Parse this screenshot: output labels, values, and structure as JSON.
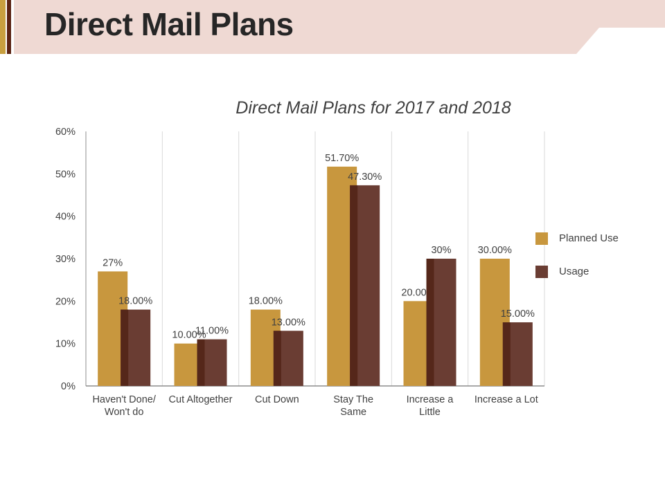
{
  "page": {
    "title": "Direct Mail Plans"
  },
  "colors": {
    "banner": "#efd9d3",
    "accent_bar": "#c89f3f",
    "accent_bar_dark": "#5a2313",
    "planned": "#c8973e",
    "usage": "#6a3d33",
    "usage_edge": "#55271a"
  },
  "chart_data": {
    "type": "bar",
    "title": "Direct Mail Plans for 2017 and 2018",
    "xlabel": "",
    "ylabel": "",
    "ylim": [
      0,
      60
    ],
    "yticks": [
      "0%",
      "10%",
      "20%",
      "30%",
      "40%",
      "50%",
      "60%"
    ],
    "categories": [
      [
        "Haven't Done/",
        "Won't do"
      ],
      [
        "Cut Altogether"
      ],
      [
        "Cut Down"
      ],
      [
        "Stay The",
        "Same"
      ],
      [
        "Increase a",
        "Little"
      ],
      [
        "Increase a Lot"
      ]
    ],
    "series": [
      {
        "name": "Planned Use",
        "values": [
          27,
          10,
          18,
          51.7,
          20,
          30
        ],
        "labels": [
          "27%",
          "10.00%",
          "18.00%",
          "51.70%",
          "20.00%",
          "30.00%"
        ]
      },
      {
        "name": "Usage",
        "values": [
          18,
          11,
          13,
          47.3,
          30,
          15
        ],
        "labels": [
          "18.00%",
          "11.00%",
          "13.00%",
          "47.30%",
          "30%",
          "15.00%"
        ]
      }
    ],
    "legend": "right",
    "grid": "vertical"
  }
}
